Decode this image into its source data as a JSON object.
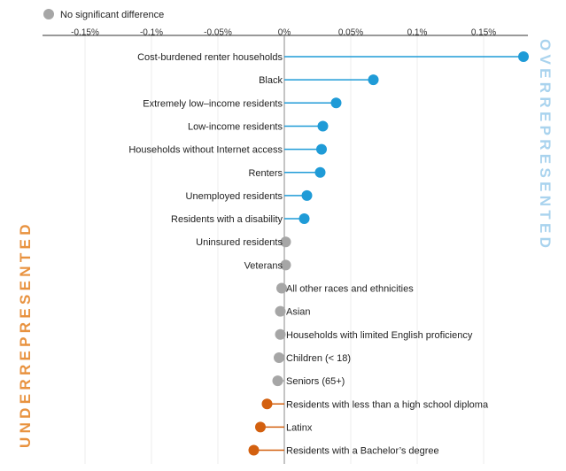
{
  "legend": {
    "label": "No significant difference"
  },
  "side_labels": {
    "over": "OVERREPRESENTED",
    "under": "UNDERREPRESENTED"
  },
  "colors": {
    "over": "#1f9bd7",
    "under": "#d3600f",
    "none": "#a6a6a6",
    "over_label": "#a9d3ee",
    "under_label": "#e8923f"
  },
  "chart_data": {
    "type": "scatter",
    "subtype": "lollipop",
    "x_ticks": [
      -0.0015,
      -0.001,
      -0.0005,
      0,
      0.0005,
      0.001,
      0.0015
    ],
    "x_tick_labels": [
      "-0.15%",
      "-0.1%",
      "-0.05%",
      "0%",
      "0.05%",
      "0.1%",
      "0.15%"
    ],
    "xlim": [
      -0.0018,
      0.00182
    ],
    "grid": true,
    "legend_position": "top-left",
    "points": [
      {
        "label": "Cost-burdened renter households",
        "value": 0.0018,
        "status": "over"
      },
      {
        "label": "Black",
        "value": 0.00067,
        "status": "over"
      },
      {
        "label": "Extremely low–income residents",
        "value": 0.00039,
        "status": "over"
      },
      {
        "label": "Low-income residents",
        "value": 0.00029,
        "status": "over"
      },
      {
        "label": "Households without Internet access",
        "value": 0.00028,
        "status": "over"
      },
      {
        "label": "Renters",
        "value": 0.00027,
        "status": "over"
      },
      {
        "label": "Unemployed residents",
        "value": 0.00017,
        "status": "over"
      },
      {
        "label": "Residents with a disability",
        "value": 0.00015,
        "status": "over"
      },
      {
        "label": "Uninsured residents",
        "value": 1e-05,
        "status": "none"
      },
      {
        "label": "Veterans",
        "value": 1e-05,
        "status": "none"
      },
      {
        "label": "All other races and ethnicities",
        "value": -2e-05,
        "status": "none"
      },
      {
        "label": "Asian",
        "value": -3e-05,
        "status": "none"
      },
      {
        "label": "Households with limited English proficiency",
        "value": -3e-05,
        "status": "none"
      },
      {
        "label": "Children (< 18)",
        "value": -4e-05,
        "status": "none"
      },
      {
        "label": "Seniors (65+)",
        "value": -5e-05,
        "status": "none"
      },
      {
        "label": "Residents with less than a high school diploma",
        "value": -0.00013,
        "status": "under"
      },
      {
        "label": "Latinx",
        "value": -0.00018,
        "status": "under"
      },
      {
        "label": "Residents with a Bachelor’s degree",
        "value": -0.00023,
        "status": "under"
      }
    ]
  }
}
